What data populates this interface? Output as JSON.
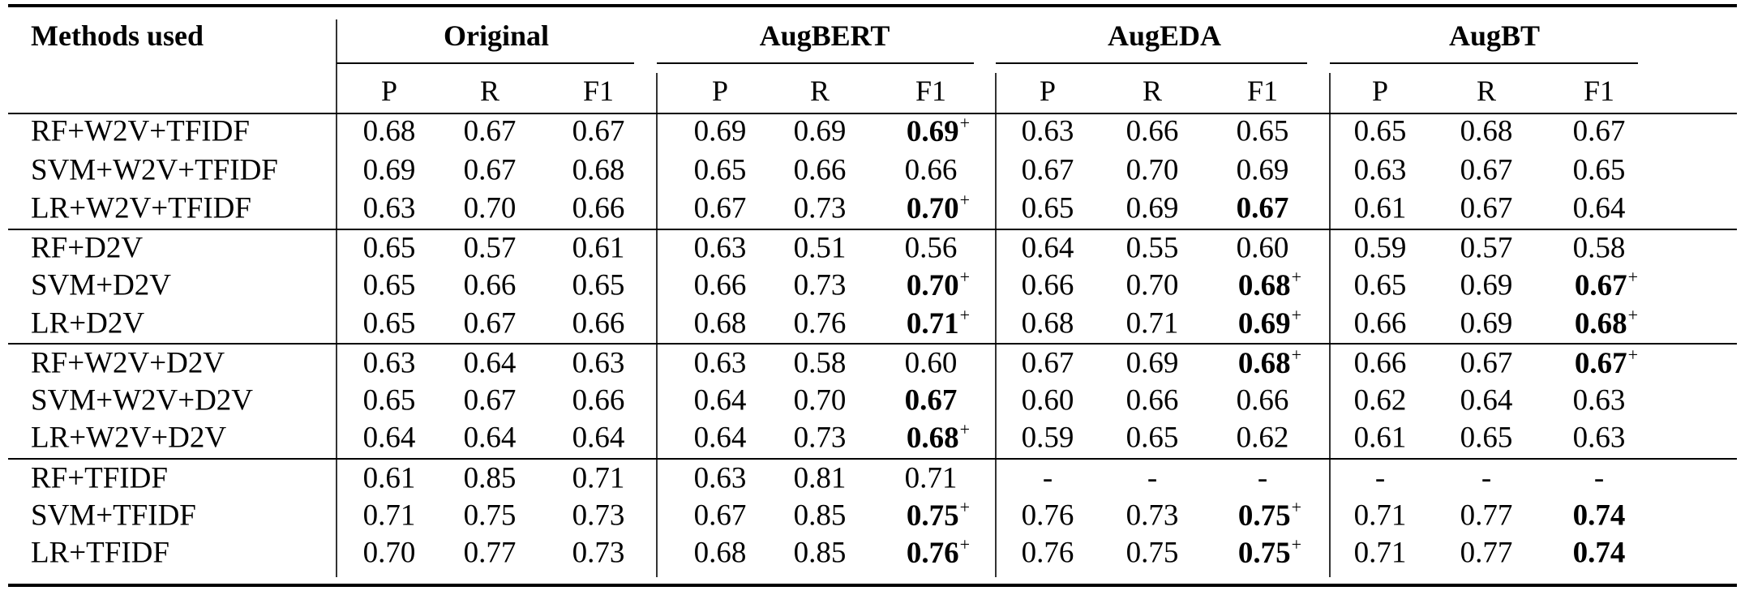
{
  "table": {
    "method_header": "Methods used",
    "groups": [
      "Original",
      "AugBERT",
      "AugEDA",
      "AugBT"
    ],
    "subheaders": [
      "P",
      "R",
      "F1"
    ],
    "superscript": "+",
    "rows": [
      {
        "method": "RF+W2V+TFIDF",
        "values": [
          "0.68",
          "0.67",
          "0.67",
          "0.69",
          "0.69",
          "0.69",
          "0.63",
          "0.66",
          "0.65",
          "0.65",
          "0.68",
          "0.67"
        ],
        "bold": [
          5
        ],
        "plus": [
          5
        ]
      },
      {
        "method": "SVM+W2V+TFIDF",
        "values": [
          "0.69",
          "0.67",
          "0.68",
          "0.65",
          "0.66",
          "0.66",
          "0.67",
          "0.70",
          "0.69",
          "0.63",
          "0.67",
          "0.65"
        ],
        "bold": [],
        "plus": []
      },
      {
        "method": "LR+W2V+TFIDF",
        "values": [
          "0.63",
          "0.70",
          "0.66",
          "0.67",
          "0.73",
          "0.70",
          "0.65",
          "0.69",
          "0.67",
          "0.61",
          "0.67",
          "0.64"
        ],
        "bold": [
          5,
          8
        ],
        "plus": [
          5
        ]
      },
      {
        "method": "RF+D2V",
        "values": [
          "0.65",
          "0.57",
          "0.61",
          "0.63",
          "0.51",
          "0.56",
          "0.64",
          "0.55",
          "0.60",
          "0.59",
          "0.57",
          "0.58"
        ],
        "bold": [],
        "plus": []
      },
      {
        "method": "SVM+D2V",
        "values": [
          "0.65",
          "0.66",
          "0.65",
          "0.66",
          "0.73",
          "0.70",
          "0.66",
          "0.70",
          "0.68",
          "0.65",
          "0.69",
          "0.67"
        ],
        "bold": [
          5,
          8,
          11
        ],
        "plus": [
          5,
          8,
          11
        ]
      },
      {
        "method": "LR+D2V",
        "values": [
          "0.65",
          "0.67",
          "0.66",
          "0.68",
          "0.76",
          "0.71",
          "0.68",
          "0.71",
          "0.69",
          "0.66",
          "0.69",
          "0.68"
        ],
        "bold": [
          5,
          8,
          11
        ],
        "plus": [
          5,
          8,
          11
        ]
      },
      {
        "method": "RF+W2V+D2V",
        "values": [
          "0.63",
          "0.64",
          "0.63",
          "0.63",
          "0.58",
          "0.60",
          "0.67",
          "0.69",
          "0.68",
          "0.66",
          "0.67",
          "0.67"
        ],
        "bold": [
          8,
          11
        ],
        "plus": [
          8,
          11
        ]
      },
      {
        "method": "SVM+W2V+D2V",
        "values": [
          "0.65",
          "0.67",
          "0.66",
          "0.64",
          "0.70",
          "0.67",
          "0.60",
          "0.66",
          "0.66",
          "0.62",
          "0.64",
          "0.63"
        ],
        "bold": [
          5
        ],
        "plus": []
      },
      {
        "method": "LR+W2V+D2V",
        "values": [
          "0.64",
          "0.64",
          "0.64",
          "0.64",
          "0.73",
          "0.68",
          "0.59",
          "0.65",
          "0.62",
          "0.61",
          "0.65",
          "0.63"
        ],
        "bold": [
          5
        ],
        "plus": [
          5
        ]
      },
      {
        "method": "RF+TFIDF",
        "values": [
          "0.61",
          "0.85",
          "0.71",
          "0.63",
          "0.81",
          "0.71",
          "-",
          "-",
          "-",
          "-",
          "-",
          "-"
        ],
        "bold": [],
        "plus": []
      },
      {
        "method": "SVM+TFIDF",
        "values": [
          "0.71",
          "0.75",
          "0.73",
          "0.67",
          "0.85",
          "0.75",
          "0.76",
          "0.73",
          "0.75",
          "0.71",
          "0.77",
          "0.74"
        ],
        "bold": [
          5,
          8,
          11
        ],
        "plus": [
          5,
          8
        ]
      },
      {
        "method": "LR+TFIDF",
        "values": [
          "0.70",
          "0.77",
          "0.73",
          "0.68",
          "0.85",
          "0.76",
          "0.76",
          "0.75",
          "0.75",
          "0.71",
          "0.77",
          "0.74"
        ],
        "bold": [
          5,
          8,
          11
        ],
        "plus": [
          5,
          8
        ]
      }
    ]
  }
}
